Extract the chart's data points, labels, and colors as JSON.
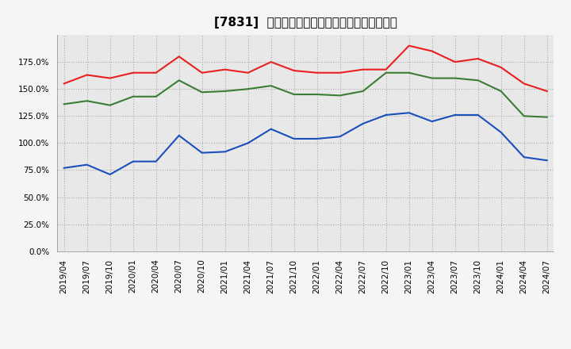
{
  "title": "[7831]  流動比率、当座比率、現預金比率の推移",
  "dates": [
    "2019/04",
    "2019/07",
    "2019/10",
    "2020/01",
    "2020/04",
    "2020/07",
    "2020/10",
    "2021/01",
    "2021/04",
    "2021/07",
    "2021/10",
    "2022/01",
    "2022/04",
    "2022/07",
    "2022/10",
    "2023/01",
    "2023/04",
    "2023/07",
    "2023/10",
    "2024/01",
    "2024/04",
    "2024/07"
  ],
  "ryudo": [
    155,
    163,
    160,
    165,
    165,
    180,
    165,
    168,
    165,
    175,
    167,
    165,
    165,
    168,
    168,
    190,
    185,
    175,
    178,
    170,
    155,
    148
  ],
  "toza": [
    136,
    139,
    135,
    143,
    143,
    158,
    147,
    148,
    150,
    153,
    145,
    145,
    144,
    148,
    165,
    165,
    160,
    160,
    158,
    148,
    125,
    124
  ],
  "genyo": [
    77,
    80,
    71,
    83,
    83,
    107,
    91,
    92,
    100,
    113,
    104,
    104,
    106,
    118,
    126,
    128,
    120,
    126,
    126,
    110,
    87,
    84
  ],
  "ryudo_color": "#e82020",
  "toza_color": "#3a7d34",
  "genyo_color": "#1a4fbb",
  "bg_color": "#f5f5f5",
  "plot_bg_color": "#e8e8e8",
  "grid_color": "#aaaaaa",
  "ylim": [
    0,
    200
  ],
  "yticks": [
    0,
    25,
    50,
    75,
    100,
    125,
    150,
    175
  ],
  "legend_labels": [
    "流動比率",
    "当座比率",
    "現預金比率"
  ],
  "title_fontsize": 11,
  "tick_fontsize": 7.5
}
